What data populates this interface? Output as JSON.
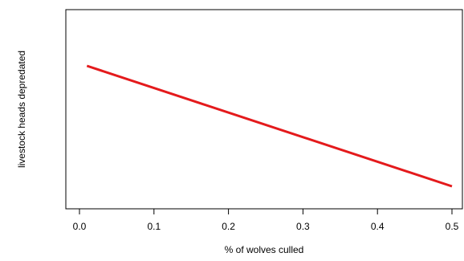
{
  "chart_data": {
    "type": "line",
    "xlabel": "% of wolves culled",
    "ylabel": "livestock heads depredated",
    "xlim": [
      0.0,
      0.5
    ],
    "xticks": [
      "0.0",
      "0.1",
      "0.2",
      "0.3",
      "0.4",
      "0.5"
    ],
    "y_tick_labels_shown": false,
    "grid": false,
    "series": [
      {
        "color": "#e41a1c",
        "x": [
          0.01,
          0.5
        ],
        "y": [
          1.0,
          0.0
        ]
      }
    ]
  }
}
